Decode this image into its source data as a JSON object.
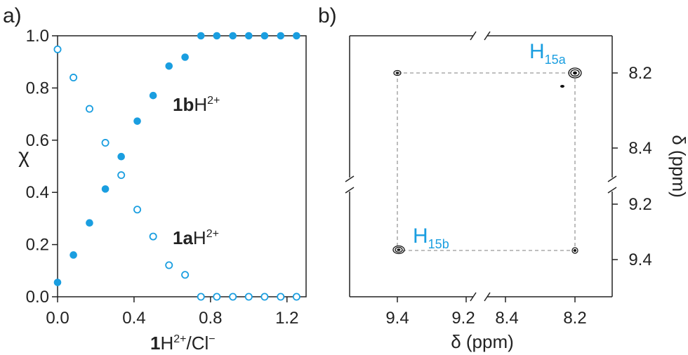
{
  "accent_color": "#1a9ee0",
  "chart_data": [
    {
      "panel_label": "a)",
      "type": "scatter",
      "ylabel": "χ",
      "xlabel_bold": "1",
      "xlabel_rest": "H",
      "xlabel_sup": "2+",
      "xlabel_tail": "/Cl",
      "xlabel_tail_sup": "−",
      "xlim": [
        0.0,
        1.3
      ],
      "ylim": [
        0.0,
        1.0
      ],
      "xticks": [
        "0.0",
        "0.4",
        "0.8",
        "1.2"
      ],
      "xtick_values": [
        0.0,
        0.4,
        0.8,
        1.2
      ],
      "yticks": [
        "0.0",
        "0.2",
        "0.4",
        "0.6",
        "0.8",
        "1.0"
      ],
      "ytick_values": [
        0.0,
        0.2,
        0.4,
        0.6,
        0.8,
        1.0
      ],
      "series": [
        {
          "label_bold": "1b",
          "label_rest": "H",
          "label_sup": "2+",
          "marker": "filled",
          "x": [
            0.0,
            0.083,
            0.167,
            0.25,
            0.333,
            0.417,
            0.5,
            0.583,
            0.667,
            0.75,
            0.833,
            0.917,
            1.0,
            1.083,
            1.167,
            1.25
          ],
          "y": [
            0.055,
            0.16,
            0.283,
            0.413,
            0.537,
            0.673,
            0.771,
            0.884,
            0.918,
            1.0,
            1.0,
            1.0,
            1.0,
            1.0,
            1.0,
            1.0
          ]
        },
        {
          "label_bold": "1a",
          "label_rest": "H",
          "label_sup": "2+",
          "marker": "open",
          "x": [
            0.0,
            0.083,
            0.167,
            0.25,
            0.333,
            0.417,
            0.5,
            0.583,
            0.667,
            0.75,
            0.833,
            0.917,
            1.0,
            1.083,
            1.167,
            1.25
          ],
          "y": [
            0.948,
            0.84,
            0.72,
            0.59,
            0.466,
            0.334,
            0.231,
            0.121,
            0.084,
            0.0,
            0.0,
            0.0,
            0.0,
            0.0,
            0.0,
            0.0
          ]
        }
      ]
    },
    {
      "panel_label": "b)",
      "type": "heatmap",
      "xlabel": "δ (ppm)",
      "ylabel": "δ (ppm)",
      "x_ticks_left": [
        "9.4",
        "9.2"
      ],
      "x_ticks_right": [
        "8.4",
        "8.2"
      ],
      "y_ticks_top": [
        "8.2",
        "8.4"
      ],
      "y_ticks_bottom": [
        "9.2",
        "9.4"
      ],
      "axis_breaks": true,
      "peaks": [
        {
          "x": 9.43,
          "y": 8.2,
          "type": "cross"
        },
        {
          "x": 8.2,
          "y": 8.2,
          "type": "diagonal",
          "label_main": "H",
          "label_sub": "15a"
        },
        {
          "x": 9.43,
          "y": 9.38,
          "type": "diagonal",
          "label_main": "H",
          "label_sub": "15b"
        },
        {
          "x": 8.2,
          "y": 9.38,
          "type": "cross"
        }
      ]
    }
  ]
}
